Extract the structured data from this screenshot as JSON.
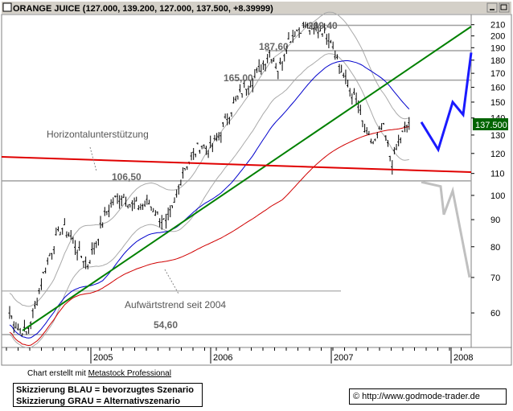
{
  "window": {
    "title": "ORANGE JUICE (127.000, 139.200, 127.000, 137.500, +8.39999)"
  },
  "chart_data": {
    "type": "candlestick",
    "y_axis_ticks": [
      "210",
      "200",
      "190",
      "180",
      "170",
      "160",
      "150",
      "140",
      "130",
      "120",
      "110",
      "100",
      "90",
      "80",
      "70",
      "60"
    ],
    "x_axis_ticks": [
      "2005",
      "2006",
      "2007",
      "2008"
    ],
    "ylim": [
      52,
      218
    ],
    "y_scale": "log",
    "last_price_label": "137.500",
    "annotations": {
      "level_209": "209,40",
      "level_187": "187,60",
      "level_165": "165,00",
      "level_106": "106,50",
      "level_54": "54,60",
      "support_label": "Horizontalunterstützung",
      "trend_label": "Aufwärtstrend seit 2004"
    },
    "horizontal_levels": [
      209.4,
      187.6,
      165.0,
      106.5,
      54.6
    ],
    "price_path": [
      [
        0.0,
        60
      ],
      [
        0.02,
        56
      ],
      [
        0.04,
        55
      ],
      [
        0.06,
        62
      ],
      [
        0.08,
        72
      ],
      [
        0.1,
        80
      ],
      [
        0.12,
        87
      ],
      [
        0.14,
        84
      ],
      [
        0.16,
        78
      ],
      [
        0.18,
        74
      ],
      [
        0.2,
        82
      ],
      [
        0.22,
        92
      ],
      [
        0.24,
        98
      ],
      [
        0.26,
        100
      ],
      [
        0.28,
        96
      ],
      [
        0.3,
        95
      ],
      [
        0.32,
        97
      ],
      [
        0.34,
        92
      ],
      [
        0.36,
        88
      ],
      [
        0.38,
        96
      ],
      [
        0.4,
        112
      ],
      [
        0.42,
        118
      ],
      [
        0.44,
        125
      ],
      [
        0.46,
        122
      ],
      [
        0.48,
        128
      ],
      [
        0.5,
        140
      ],
      [
        0.52,
        150
      ],
      [
        0.54,
        160
      ],
      [
        0.56,
        165
      ],
      [
        0.58,
        175
      ],
      [
        0.6,
        187
      ],
      [
        0.62,
        172
      ],
      [
        0.64,
        195
      ],
      [
        0.66,
        205
      ],
      [
        0.68,
        209
      ],
      [
        0.7,
        204
      ],
      [
        0.72,
        206
      ],
      [
        0.74,
        198
      ],
      [
        0.76,
        175
      ],
      [
        0.78,
        160
      ],
      [
        0.8,
        150
      ],
      [
        0.82,
        130
      ],
      [
        0.84,
        125
      ],
      [
        0.86,
        135
      ],
      [
        0.88,
        115
      ],
      [
        0.9,
        128
      ],
      [
        0.92,
        137.5
      ]
    ],
    "indicators": {
      "red_ma": "200-day moving average",
      "blue_ma": "50-day moving average",
      "gray_bands": "Bollinger bands"
    },
    "trendlines": {
      "green": "uptrend since 2004",
      "red": "horizontal support"
    },
    "scenarios": {
      "blue": [
        137.5,
        122,
        150,
        140,
        185
      ],
      "gray": [
        106,
        92,
        70
      ]
    }
  },
  "footer": {
    "credit_prefix": "Chart erstellt mit ",
    "credit_link": "Metastock Professional",
    "legend_line1": "Skizzierung BLAU = bevorzugtes Szenario",
    "legend_line2": "Skizzierung GRAU = Alternativszenario",
    "copyright": "© http://www.godmode-trader.de"
  },
  "colors": {
    "price": "#000000",
    "green_trend": "#008000",
    "red_support": "#e00000",
    "blue_ma": "#0000cc",
    "red_ma": "#d00000",
    "bands": "#aaaaaa",
    "scenario_blue": "#1a1aff",
    "scenario_gray": "#c0c0c0",
    "price_label_bg": "#006400"
  }
}
